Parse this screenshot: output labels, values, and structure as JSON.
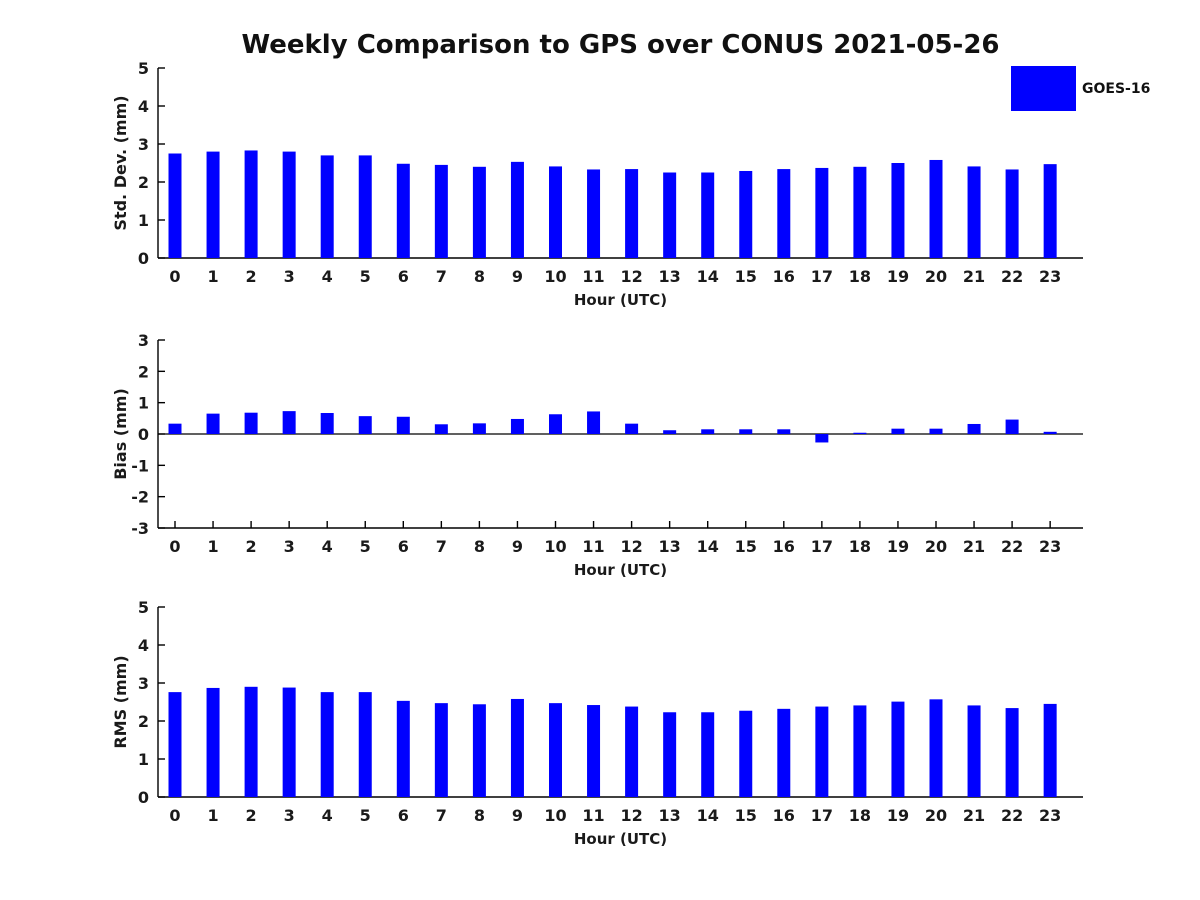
{
  "title": "Weekly Comparison to GPS over CONUS 2021-05-26",
  "legend": {
    "label": "GOES-16",
    "color": "#0000ff"
  },
  "text_color": "#1a1a1a",
  "axis_color": "#000000",
  "chart_data": [
    {
      "type": "bar",
      "title": "Weekly Comparison to GPS over CONUS 2021-05-26",
      "ylabel": "Std. Dev. (mm)",
      "xlabel": "Hour (UTC)",
      "categories": [
        0,
        1,
        2,
        3,
        4,
        5,
        6,
        7,
        8,
        9,
        10,
        11,
        12,
        13,
        14,
        15,
        16,
        17,
        18,
        19,
        20,
        21,
        22,
        23
      ],
      "series": [
        {
          "name": "GOES-16",
          "values": [
            2.75,
            2.8,
            2.83,
            2.8,
            2.7,
            2.7,
            2.48,
            2.45,
            2.4,
            2.53,
            2.41,
            2.33,
            2.34,
            2.25,
            2.25,
            2.29,
            2.34,
            2.37,
            2.4,
            2.5,
            2.58,
            2.41,
            2.33,
            2.47
          ]
        }
      ],
      "ylim": [
        0,
        5
      ],
      "yticks": [
        0,
        1,
        2,
        3,
        4,
        5
      ],
      "bar_color": "#0000ff",
      "grid": false,
      "legend_position": "upper-right-outside"
    },
    {
      "type": "bar",
      "title": "",
      "ylabel": "Bias (mm)",
      "xlabel": "Hour (UTC)",
      "categories": [
        0,
        1,
        2,
        3,
        4,
        5,
        6,
        7,
        8,
        9,
        10,
        11,
        12,
        13,
        14,
        15,
        16,
        17,
        18,
        19,
        20,
        21,
        22,
        23
      ],
      "series": [
        {
          "name": "GOES-16",
          "values": [
            0.33,
            0.65,
            0.68,
            0.73,
            0.67,
            0.57,
            0.55,
            0.31,
            0.34,
            0.48,
            0.63,
            0.72,
            0.33,
            0.12,
            0.15,
            0.15,
            0.15,
            -0.27,
            0.04,
            0.17,
            0.17,
            0.32,
            0.46,
            0.07
          ]
        }
      ],
      "ylim": [
        -3,
        3
      ],
      "yticks": [
        -3,
        -2,
        -1,
        0,
        1,
        2,
        3
      ],
      "bar_color": "#0000ff",
      "grid": false,
      "baseline": 0
    },
    {
      "type": "bar",
      "title": "",
      "ylabel": "RMS (mm)",
      "xlabel": "Hour (UTC)",
      "categories": [
        0,
        1,
        2,
        3,
        4,
        5,
        6,
        7,
        8,
        9,
        10,
        11,
        12,
        13,
        14,
        15,
        16,
        17,
        18,
        19,
        20,
        21,
        22,
        23
      ],
      "series": [
        {
          "name": "GOES-16",
          "values": [
            2.76,
            2.87,
            2.9,
            2.88,
            2.76,
            2.76,
            2.53,
            2.47,
            2.44,
            2.58,
            2.47,
            2.42,
            2.38,
            2.23,
            2.23,
            2.27,
            2.32,
            2.38,
            2.41,
            2.51,
            2.57,
            2.41,
            2.34,
            2.45
          ]
        }
      ],
      "ylim": [
        0,
        5
      ],
      "yticks": [
        0,
        1,
        2,
        3,
        4,
        5
      ],
      "bar_color": "#0000ff",
      "grid": false
    }
  ]
}
